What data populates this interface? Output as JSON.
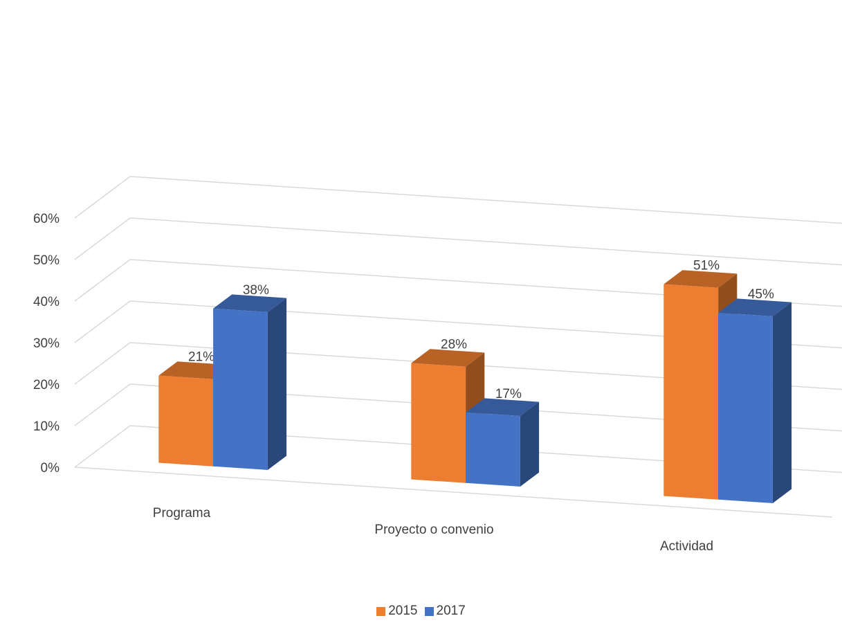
{
  "chart_data": {
    "type": "bar",
    "categories": [
      "Programa",
      "Proyecto o convenio",
      "Actividad"
    ],
    "series": [
      {
        "name": "2015",
        "values": [
          21,
          28,
          51
        ],
        "labels": [
          "21%",
          "28%",
          "51%"
        ],
        "color": "#ED7D31"
      },
      {
        "name": "2017",
        "values": [
          38,
          17,
          45
        ],
        "labels": [
          "38%",
          "17%",
          "45%"
        ],
        "color": "#4472C4"
      }
    ],
    "yticks": [
      "0%",
      "10%",
      "20%",
      "30%",
      "40%",
      "50%",
      "60%"
    ],
    "ylim": [
      0,
      60
    ],
    "grid": true,
    "legend_position": "bottom",
    "style": "3d-clustered-column"
  }
}
